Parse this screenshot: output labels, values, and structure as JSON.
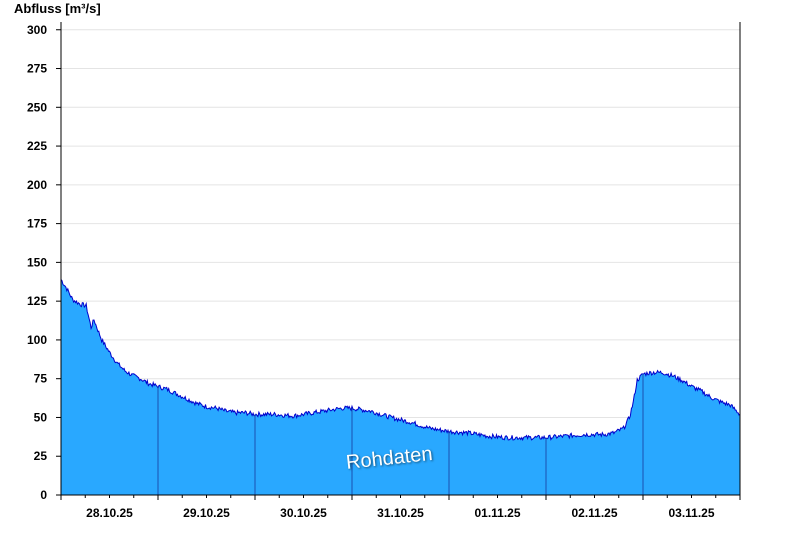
{
  "chart_data": {
    "type": "area",
    "title": "",
    "ylabel": "Abfluss [m³/s]",
    "xlabel": "",
    "watermark": "Rohdaten",
    "ylim": [
      0,
      305
    ],
    "yticks": [
      0,
      25,
      50,
      75,
      100,
      125,
      150,
      175,
      200,
      225,
      250,
      275,
      300
    ],
    "x_range_days": [
      27.0,
      34.0
    ],
    "x_tick_labels": [
      "28.10.25",
      "29.10.25",
      "30.10.25",
      "31.10.25",
      "01.11.25",
      "02.11.25",
      "03.11.25"
    ],
    "x_tick_label_days": [
      27.5,
      28.5,
      29.5,
      30.5,
      31.5,
      32.5,
      33.5
    ],
    "x_day_boundaries": [
      28,
      29,
      30,
      31,
      32,
      33
    ],
    "grid": true,
    "fill_color": "#29a8ff",
    "line_color": "#0000cc",
    "series": [
      {
        "x_days": [
          27.0,
          27.06,
          27.12,
          27.2,
          27.26,
          27.31,
          27.34,
          27.37,
          27.42,
          27.5,
          27.58,
          27.66,
          27.74,
          27.82,
          27.9,
          28.0,
          28.1,
          28.2,
          28.3,
          28.4,
          28.5,
          28.6,
          28.7,
          28.8,
          28.9,
          29.0,
          29.2,
          29.4,
          29.5,
          29.6,
          29.7,
          29.8,
          29.9,
          30.0,
          30.2,
          30.4,
          30.6,
          30.8,
          31.0,
          31.2,
          31.4,
          31.6,
          31.8,
          32.0,
          32.2,
          32.4,
          32.6,
          32.7,
          32.8,
          32.86,
          32.9,
          32.94,
          33.0,
          33.1,
          33.2,
          33.3,
          33.4,
          33.5,
          33.6,
          33.7,
          33.8,
          33.9,
          34.0
        ],
        "values": [
          139,
          133,
          126,
          123,
          122,
          108,
          113,
          108,
          100,
          92,
          85,
          80,
          77,
          75,
          72,
          70,
          68,
          65,
          62,
          59,
          57,
          56,
          54,
          53,
          53,
          52,
          52,
          51,
          52,
          53,
          54,
          55,
          56,
          56,
          54,
          50,
          47,
          43,
          41,
          40,
          38,
          37,
          37,
          37,
          38,
          39,
          39,
          40,
          43,
          50,
          60,
          74,
          78,
          79,
          79,
          77,
          74,
          70,
          67,
          63,
          60,
          58,
          52
        ]
      }
    ]
  }
}
